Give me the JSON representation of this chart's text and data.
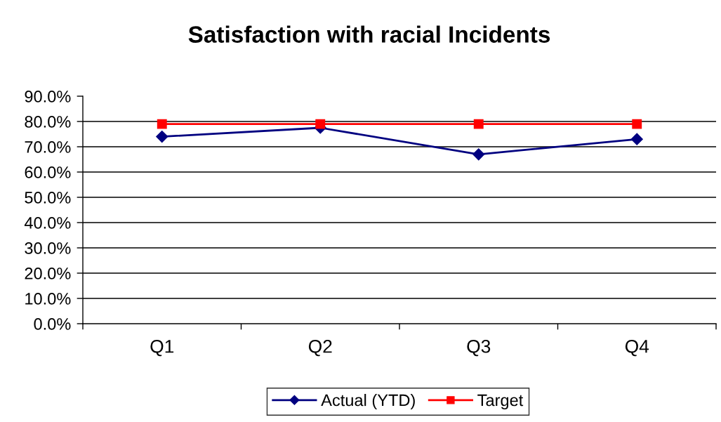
{
  "chart_data": {
    "type": "line",
    "title": "Satisfaction with racial Incidents",
    "categories": [
      "Q1",
      "Q2",
      "Q3",
      "Q4"
    ],
    "series": [
      {
        "name": "Actual (YTD)",
        "color": "#000080",
        "marker": "diamond",
        "values": [
          74.0,
          77.5,
          67.0,
          73.0
        ]
      },
      {
        "name": "Target",
        "color": "#ff0000",
        "marker": "square",
        "values": [
          79.0,
          79.0,
          79.0,
          79.0
        ]
      }
    ],
    "ylim": [
      0,
      90
    ],
    "yticks": [
      {
        "value": 0,
        "label": "0.0%"
      },
      {
        "value": 10,
        "label": "10.0%"
      },
      {
        "value": 20,
        "label": "20.0%"
      },
      {
        "value": 30,
        "label": "30.0%"
      },
      {
        "value": 40,
        "label": "40.0%"
      },
      {
        "value": 50,
        "label": "50.0%"
      },
      {
        "value": 60,
        "label": "60.0%"
      },
      {
        "value": 70,
        "label": "70.0%"
      },
      {
        "value": 80,
        "label": "80.0%"
      },
      {
        "value": 90,
        "label": "90.0%"
      }
    ],
    "grid": "y",
    "legend": "bottom",
    "line_style": "solid"
  }
}
